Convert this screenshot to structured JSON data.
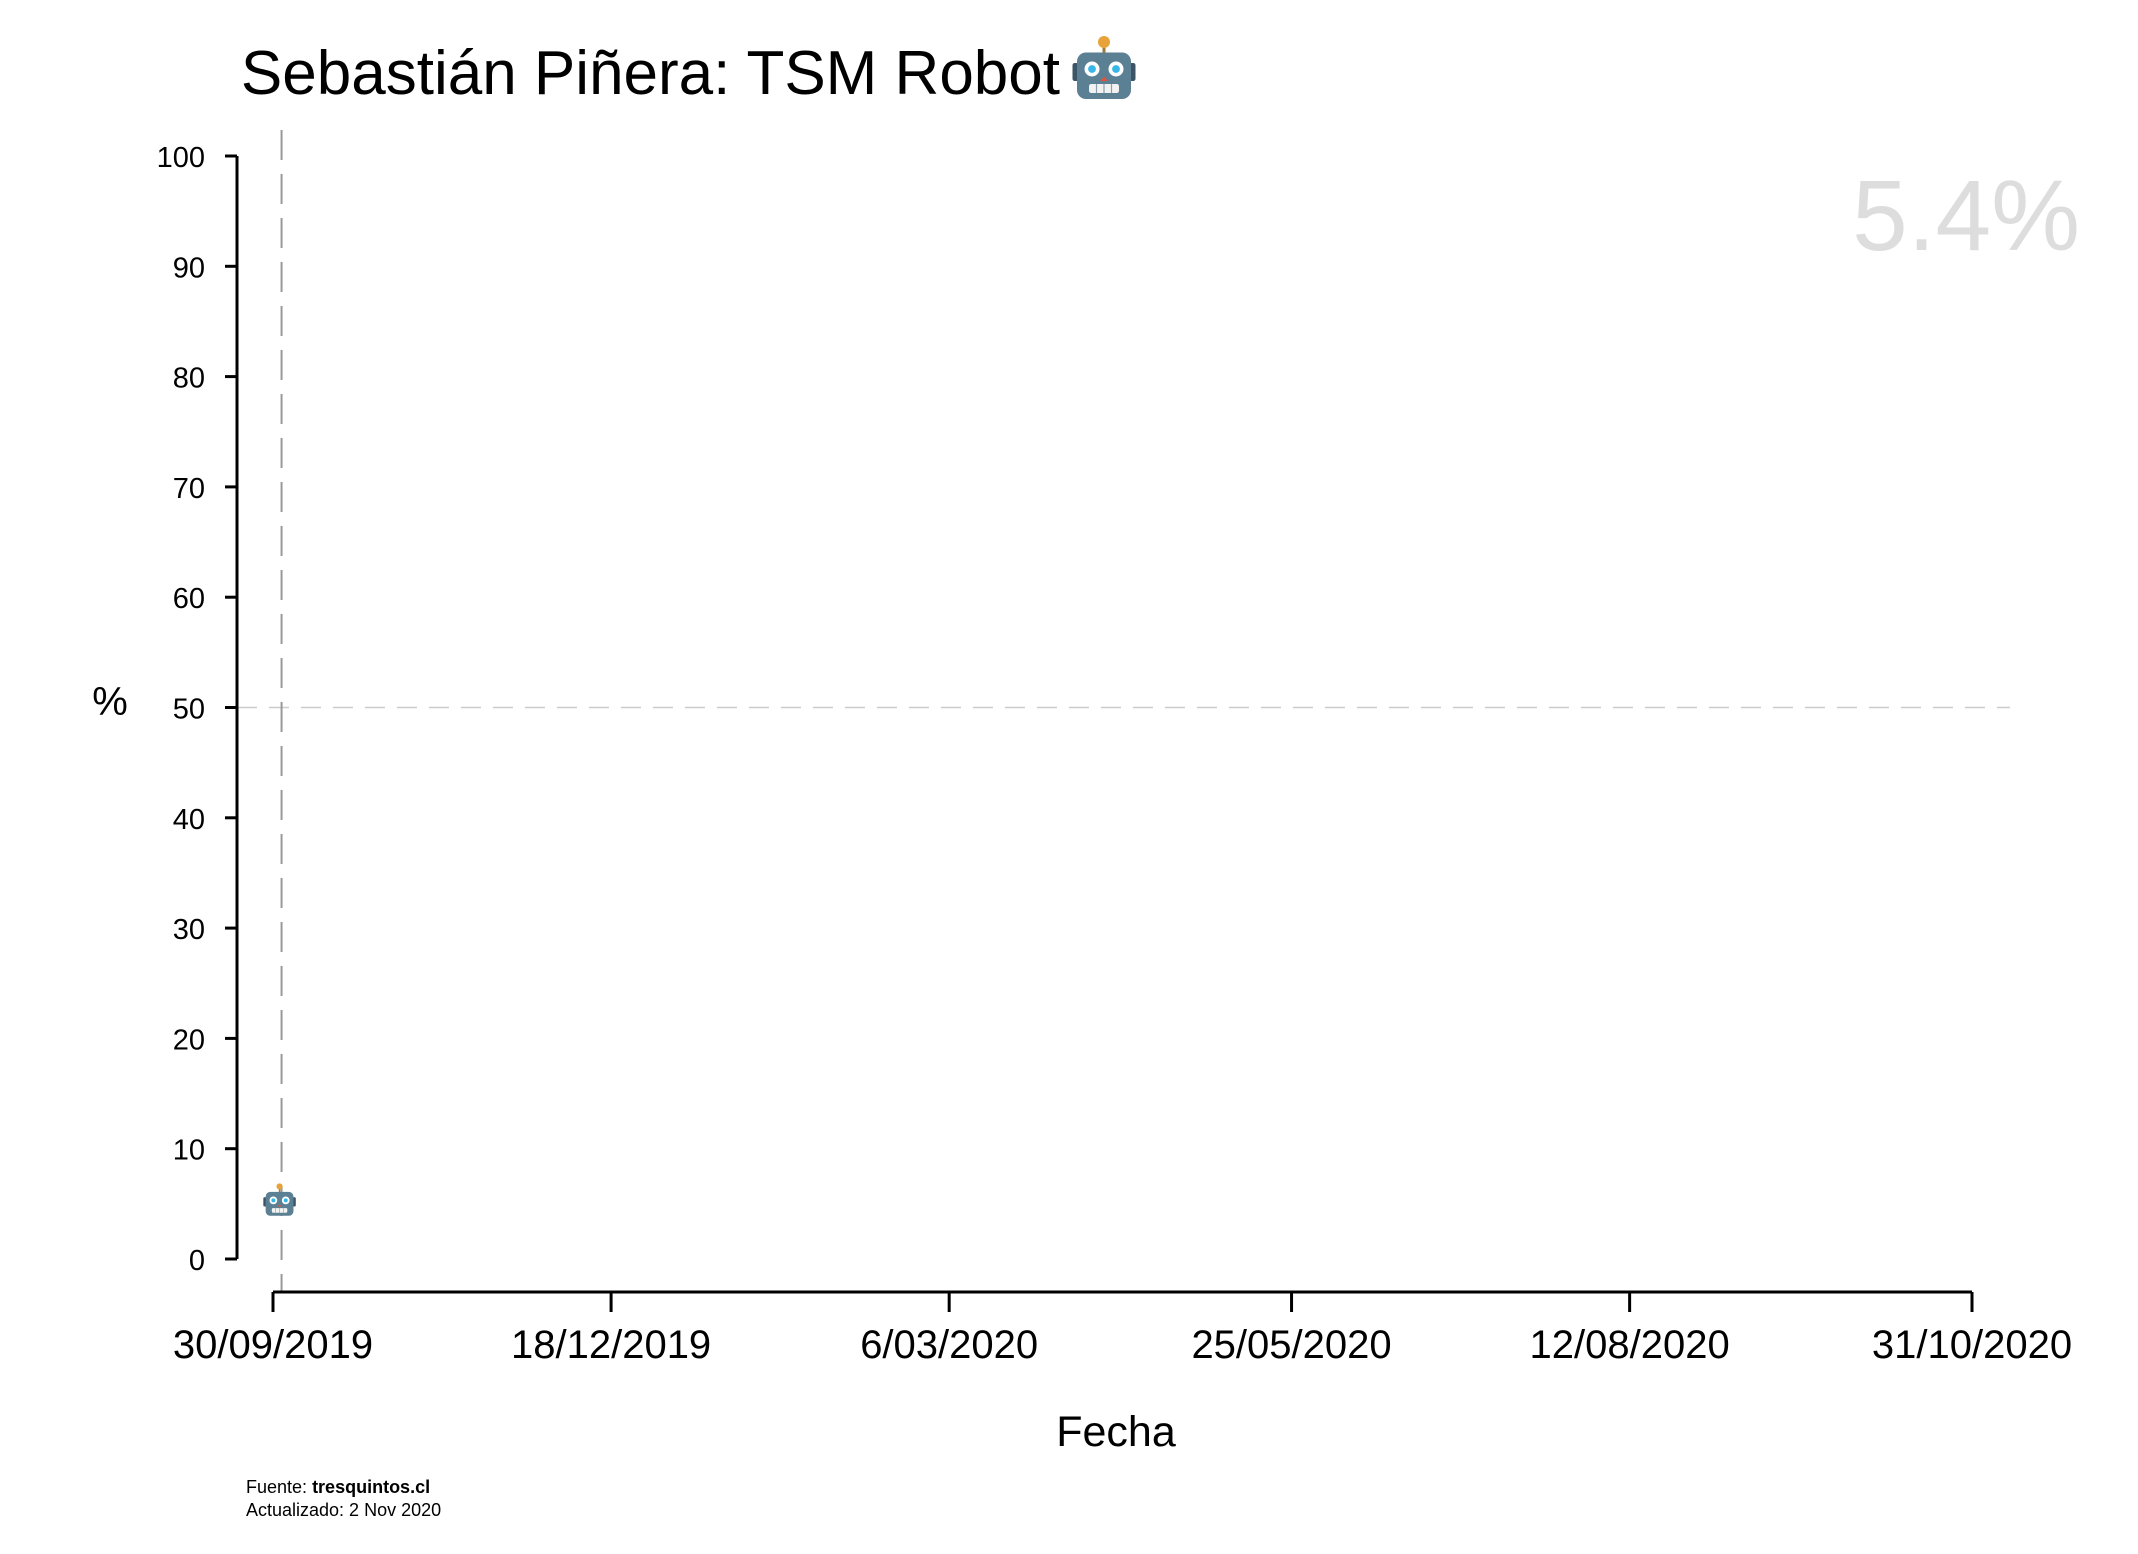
{
  "chart_data": {
    "type": "scatter",
    "title": "Sebastián Piñera: TSM Robot",
    "title_emoji": "🤖",
    "xlabel": "Fecha",
    "ylabel": "%",
    "ylim": [
      0,
      100
    ],
    "yticks": [
      0,
      10,
      20,
      30,
      40,
      50,
      60,
      70,
      80,
      90,
      100
    ],
    "xticks": [
      "30/09/2019",
      "18/12/2019",
      "6/03/2020",
      "25/05/2020",
      "12/08/2020",
      "31/10/2020"
    ],
    "xlim_days": [
      0,
      397
    ],
    "xtick_days": [
      0,
      79,
      158,
      238,
      317,
      397
    ],
    "reference_line_y": 50,
    "reference_vline_day": 2,
    "points": [
      {
        "date": "02/10/2019",
        "day": 2,
        "value": 5.4,
        "marker": "🤖"
      }
    ],
    "latest_value_label": "5.4%",
    "marker_color": "#5b7f93",
    "annotation_color": "#dddddd"
  },
  "footer": {
    "source_prefix": "Fuente:",
    "source_name": "tresquintos.cl",
    "updated": "Actualizado: 2 Nov 2020"
  }
}
